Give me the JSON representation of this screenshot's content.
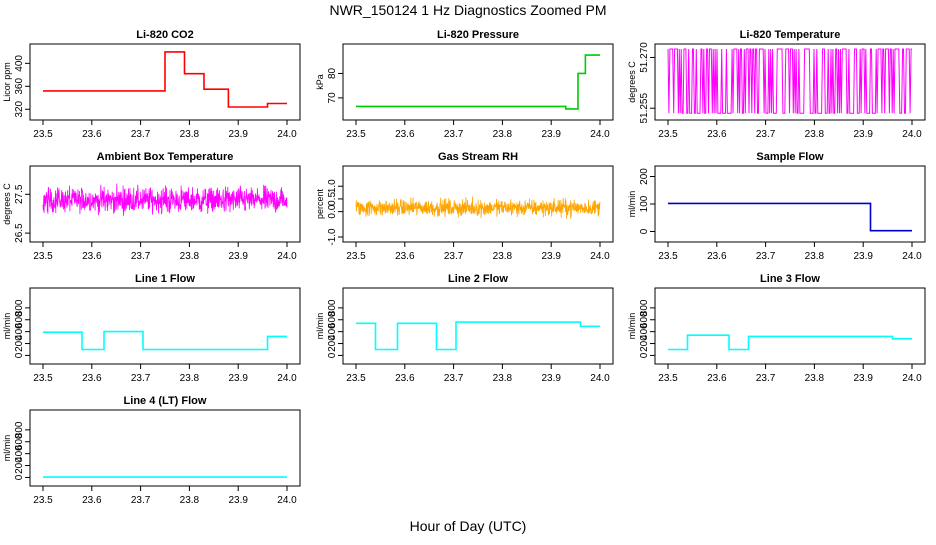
{
  "page": {
    "title": "NWR_150124  1 Hz Diagnostics Zoomed PM",
    "xlabel": "Hour of Day (UTC)"
  },
  "chart_data": [
    {
      "type": "line",
      "title": "Li-820 CO2",
      "ylabel": "Licor ppm",
      "color": "#ff0000",
      "xlim": [
        23.5,
        24.0
      ],
      "ylim": [
        310,
        425
      ],
      "x_ticks": [
        23.5,
        23.6,
        23.7,
        23.8,
        23.9,
        24.0
      ],
      "y_ticks": [
        320,
        360,
        400
      ],
      "segments": [
        {
          "x0": 23.5,
          "x1": 23.75,
          "y": 352
        },
        {
          "x0": 23.75,
          "x1": 23.79,
          "y": 420
        },
        {
          "x0": 23.79,
          "x1": 23.83,
          "y": 382
        },
        {
          "x0": 23.83,
          "x1": 23.88,
          "y": 355
        },
        {
          "x0": 23.88,
          "x1": 23.96,
          "y": 324
        },
        {
          "x0": 23.96,
          "x1": 24.0,
          "y": 330
        }
      ]
    },
    {
      "type": "line",
      "title": "Li-820 Pressure",
      "ylabel": "kPa",
      "color": "#00cc00",
      "xlim": [
        23.5,
        24.0
      ],
      "ylim": [
        63,
        90
      ],
      "x_ticks": [
        23.5,
        23.6,
        23.7,
        23.8,
        23.9,
        24.0
      ],
      "y_ticks": [
        70,
        80
      ],
      "segments": [
        {
          "x0": 23.5,
          "x1": 23.93,
          "y": 66.5
        },
        {
          "x0": 23.93,
          "x1": 23.955,
          "y": 65.5
        },
        {
          "x0": 23.955,
          "x1": 23.97,
          "y": 80
        },
        {
          "x0": 23.97,
          "x1": 24.0,
          "y": 87.5
        }
      ]
    },
    {
      "type": "line",
      "title": "Li-820 Temperature",
      "ylabel": "degrees C",
      "color": "#ff00ff",
      "xlim": [
        23.5,
        24.0
      ],
      "ylim": [
        51.253,
        51.2725
      ],
      "x_ticks": [
        23.5,
        23.6,
        23.7,
        23.8,
        23.9,
        24.0
      ],
      "y_ticks": [
        51.255,
        51.27
      ],
      "y_tick_labels": [
        "51.255",
        "51.270"
      ],
      "levels": [
        51.2535,
        51.2725
      ],
      "noise_kind": "binary"
    },
    {
      "type": "line",
      "title": "Ambient Box Temperature",
      "ylabel": "degrees C",
      "color": "#ff00ff",
      "xlim": [
        23.5,
        24.0
      ],
      "ylim": [
        26.4,
        28.1
      ],
      "x_ticks": [
        23.5,
        23.6,
        23.7,
        23.8,
        23.9,
        24.0
      ],
      "y_ticks": [
        26.5,
        27.5
      ],
      "mean": 27.35,
      "noise": 0.35,
      "noise_kind": "dense"
    },
    {
      "type": "line",
      "title": "Gas Stream RH",
      "ylabel": "percent",
      "color": "#ffa500",
      "xlim": [
        23.5,
        24.0
      ],
      "ylim": [
        -1.0,
        1.6
      ],
      "x_ticks": [
        23.5,
        23.6,
        23.7,
        23.8,
        23.9,
        24.0
      ],
      "y_ticks": [
        -1.0,
        0.0,
        0.5,
        1.0
      ],
      "y_tick_labels": [
        "-1.0",
        "0.0",
        "0.5",
        "1.0"
      ],
      "mean": 0.15,
      "noise": 0.35,
      "noise_kind": "dense"
    },
    {
      "type": "line",
      "title": "Sample Flow",
      "ylabel": "ml/min",
      "color": "#0000cc",
      "xlim": [
        23.5,
        24.0
      ],
      "ylim": [
        -20,
        220
      ],
      "x_ticks": [
        23.5,
        23.6,
        23.7,
        23.8,
        23.9,
        24.0
      ],
      "y_ticks": [
        0,
        100,
        200
      ],
      "segments": [
        {
          "x0": 23.5,
          "x1": 23.915,
          "y": 102
        },
        {
          "x0": 23.915,
          "x1": 24.0,
          "y": 3
        }
      ]
    },
    {
      "type": "line",
      "title": "Line 1 Flow",
      "ylabel": "ml/min",
      "color": "#00ffff",
      "xlim": [
        23.5,
        24.0
      ],
      "ylim": [
        -60,
        1050
      ],
      "x_ticks": [
        23.5,
        23.6,
        23.7,
        23.8,
        23.9,
        24.0
      ],
      "y_ticks": [
        0,
        200,
        400,
        600,
        800
      ],
      "segments": [
        {
          "x0": 23.5,
          "x1": 23.58,
          "y": 390
        },
        {
          "x0": 23.58,
          "x1": 23.625,
          "y": 100
        },
        {
          "x0": 23.625,
          "x1": 23.705,
          "y": 400
        },
        {
          "x0": 23.705,
          "x1": 23.96,
          "y": 100
        },
        {
          "x0": 23.96,
          "x1": 24.0,
          "y": 320
        }
      ]
    },
    {
      "type": "line",
      "title": "Line 2 Flow",
      "ylabel": "ml/min",
      "color": "#00ffff",
      "xlim": [
        23.5,
        24.0
      ],
      "ylim": [
        -60,
        1050
      ],
      "x_ticks": [
        23.5,
        23.6,
        23.7,
        23.8,
        23.9,
        24.0
      ],
      "y_ticks": [
        0,
        200,
        400,
        600,
        800
      ],
      "segments": [
        {
          "x0": 23.5,
          "x1": 23.54,
          "y": 540
        },
        {
          "x0": 23.54,
          "x1": 23.585,
          "y": 100
        },
        {
          "x0": 23.585,
          "x1": 23.665,
          "y": 540
        },
        {
          "x0": 23.665,
          "x1": 23.705,
          "y": 100
        },
        {
          "x0": 23.705,
          "x1": 23.96,
          "y": 560
        },
        {
          "x0": 23.96,
          "x1": 24.0,
          "y": 490
        }
      ]
    },
    {
      "type": "line",
      "title": "Line 3 Flow",
      "ylabel": "ml/min",
      "color": "#00ffff",
      "xlim": [
        23.5,
        24.0
      ],
      "ylim": [
        -60,
        1050
      ],
      "x_ticks": [
        23.5,
        23.6,
        23.7,
        23.8,
        23.9,
        24.0
      ],
      "y_ticks": [
        0,
        200,
        400,
        600,
        800
      ],
      "segments": [
        {
          "x0": 23.5,
          "x1": 23.54,
          "y": 100
        },
        {
          "x0": 23.54,
          "x1": 23.625,
          "y": 340
        },
        {
          "x0": 23.625,
          "x1": 23.665,
          "y": 100
        },
        {
          "x0": 23.665,
          "x1": 23.96,
          "y": 320
        },
        {
          "x0": 23.96,
          "x1": 24.0,
          "y": 280
        }
      ]
    },
    {
      "type": "line",
      "title": "Line 4 (LT) Flow",
      "ylabel": "ml/min",
      "color": "#00ffff",
      "xlim": [
        23.5,
        24.0
      ],
      "ylim": [
        -60,
        1050
      ],
      "x_ticks": [
        23.5,
        23.6,
        23.7,
        23.8,
        23.9,
        24.0
      ],
      "y_ticks": [
        0,
        200,
        400,
        600,
        800
      ],
      "segments": [
        {
          "x0": 23.5,
          "x1": 24.0,
          "y": 5
        }
      ]
    }
  ]
}
